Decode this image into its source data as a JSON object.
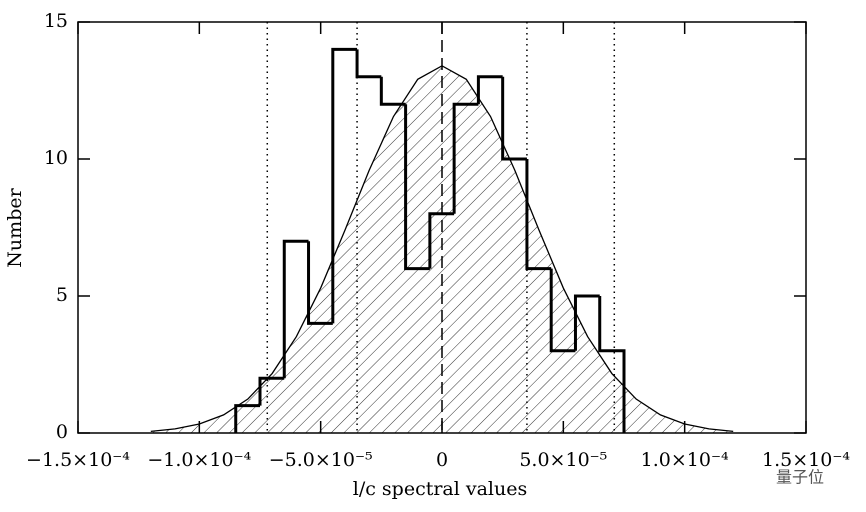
{
  "chart_data": {
    "type": "histogram",
    "xlabel": "l/c spectral values",
    "ylabel": "Number",
    "bins": [
      -8.5e-05,
      -7.5e-05,
      -6.5e-05,
      -5.5e-05,
      -4.5e-05,
      -3.5e-05,
      -2.5e-05,
      -1.5e-05,
      -5e-06,
      5e-06,
      1.5e-05,
      2.5e-05,
      3.5e-05,
      4.5e-05,
      5.5e-05,
      6.5e-05,
      7.5e-05
    ],
    "counts": [
      1,
      2,
      7,
      4,
      14,
      13,
      12,
      6,
      8,
      12,
      13,
      10,
      6,
      3,
      5,
      3
    ],
    "color": "#000000",
    "curve": {
      "x": [
        -0.00012,
        -0.00011,
        -0.0001,
        -9e-05,
        -8e-05,
        -7e-05,
        -6e-05,
        -5e-05,
        -4e-05,
        -3e-05,
        -2e-05,
        -1e-05,
        0,
        1e-05,
        2e-05,
        3e-05,
        4e-05,
        5e-05,
        6e-05,
        7e-05,
        8e-05,
        9e-05,
        0.0001,
        0.00011,
        0.00012
      ],
      "values": [
        0.06,
        0.15,
        0.33,
        0.66,
        1.24,
        2.17,
        3.52,
        5.29,
        7.4,
        9.59,
        11.55,
        12.91,
        13.4,
        12.91,
        11.55,
        9.59,
        7.4,
        5.29,
        3.52,
        2.17,
        1.24,
        0.66,
        0.33,
        0.15,
        0.06
      ]
    },
    "dotted_lines": [
      -7.2e-05,
      -3.5e-05,
      3.5e-05,
      7.1e-05
    ],
    "dashed_line": 0,
    "xlim": [
      -0.00015,
      0.00015
    ],
    "ylim": [
      0,
      15
    ],
    "xticks": [
      {
        "value": -0.00015,
        "label": "−1.5×10⁻⁴"
      },
      {
        "value": -0.0001,
        "label": "−1.0×10⁻⁴"
      },
      {
        "value": -5e-05,
        "label": "−5.0×10⁻⁵"
      },
      0,
      {
        "value": 5e-05,
        "label": "5.0×10⁻⁵"
      },
      {
        "value": 0.0001,
        "label": "1.0×10⁻⁴"
      },
      {
        "value": 0.00015,
        "label": "1.5×10⁻⁴"
      }
    ],
    "yticks": [
      0,
      5,
      10,
      15
    ],
    "watermark": "量子位"
  }
}
